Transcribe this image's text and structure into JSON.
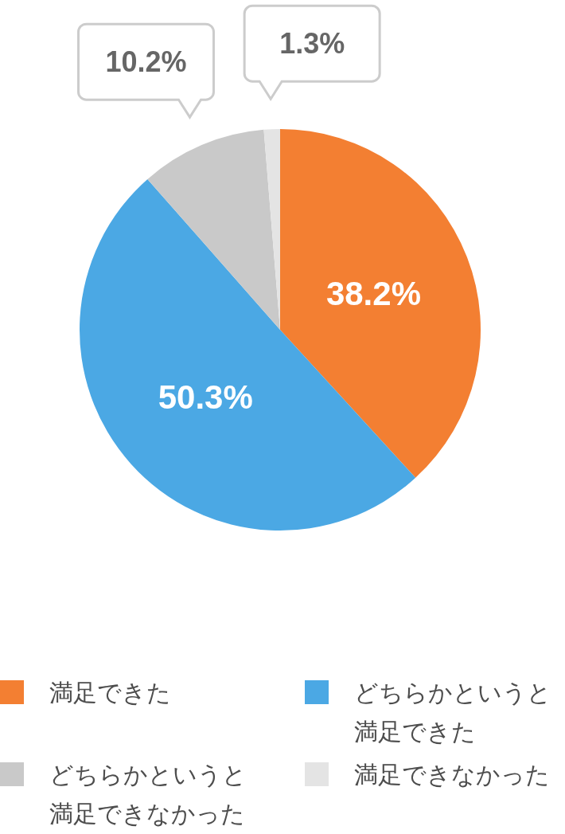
{
  "chart_data": {
    "type": "pie",
    "categories": [
      "満足できた",
      "どちらかというと満足できた",
      "どちらかというと満足できなかった",
      "満足できなかった"
    ],
    "values": [
      38.2,
      50.3,
      10.2,
      1.3
    ],
    "colors": [
      "#f37f32",
      "#4ba8e4",
      "#c9c9c9",
      "#e4e4e4"
    ],
    "value_labels": [
      "38.2%",
      "50.3%",
      "10.2%",
      "1.3%"
    ],
    "legend": "bottom"
  }
}
